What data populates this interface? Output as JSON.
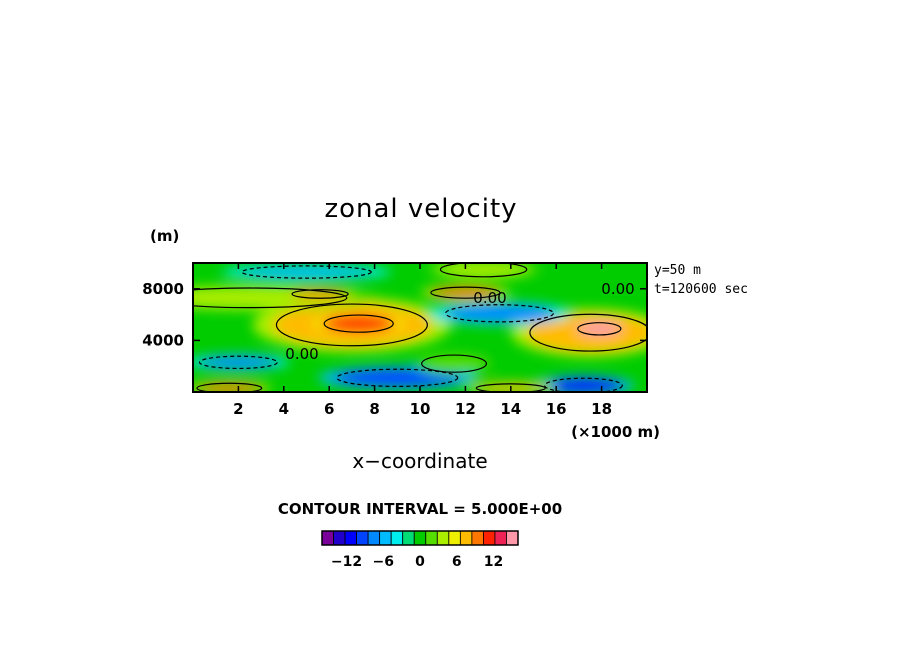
{
  "chart_data": {
    "type": "heatmap",
    "title": "zonal velocity",
    "xlabel": "x−coordinate",
    "x_unit": "(×1000 m)",
    "y_unit": "(m)",
    "xlim": [
      0,
      20
    ],
    "ylim": [
      0,
      10000
    ],
    "x_ticks": [
      2,
      4,
      6,
      8,
      10,
      12,
      14,
      16,
      18
    ],
    "y_ticks": [
      4000,
      8000
    ],
    "info_lines": [
      "y=50 m",
      "t=120600 sec"
    ],
    "contour_interval_text": "CONTOUR INTERVAL = 5.000E+00",
    "contour_labels": [
      "0.00",
      "0.00",
      "0.00"
    ],
    "colorbar": {
      "tick_labels": [
        "−12",
        "−6",
        "0",
        "6",
        "12"
      ],
      "tick_values": [
        -12,
        -6,
        0,
        6,
        12
      ],
      "levels": [
        -16,
        -14,
        -12,
        -10,
        -8,
        -6,
        -4,
        -2,
        0,
        2,
        4,
        6,
        8,
        10,
        12,
        14,
        16
      ],
      "colors": [
        "#7a0099",
        "#2200cc",
        "#0000ff",
        "#0044ff",
        "#0088ff",
        "#00bbff",
        "#00eeee",
        "#00dd77",
        "#00cc00",
        "#55dd00",
        "#aaee00",
        "#eeee00",
        "#ffbb00",
        "#ff7700",
        "#ff2200",
        "#ee2255",
        "#ff99aa"
      ]
    },
    "features": [
      {
        "x": 7.0,
        "y": 5200,
        "rx": 3.5,
        "ry": 1700,
        "value": 9
      },
      {
        "x": 7.3,
        "y": 5300,
        "rx": 1.6,
        "ry": 700,
        "value": 13
      },
      {
        "x": 17.5,
        "y": 4600,
        "rx": 2.8,
        "ry": 1500,
        "value": 10
      },
      {
        "x": 17.9,
        "y": 4900,
        "rx": 1.0,
        "ry": 500,
        "value": 18
      },
      {
        "x": 2.5,
        "y": 7300,
        "rx": 4.5,
        "ry": 800,
        "value": 6
      },
      {
        "x": 5.6,
        "y": 7600,
        "rx": 1.3,
        "ry": 350,
        "value": 12
      },
      {
        "x": 12.0,
        "y": 7700,
        "rx": 1.6,
        "ry": 450,
        "value": 12
      },
      {
        "x": 13.5,
        "y": 6100,
        "rx": 2.5,
        "ry": 700,
        "value": -7
      },
      {
        "x": 9.0,
        "y": 1100,
        "rx": 2.8,
        "ry": 700,
        "value": -9
      },
      {
        "x": 17.2,
        "y": 500,
        "rx": 1.8,
        "ry": 600,
        "value": -11
      },
      {
        "x": 2.0,
        "y": 2300,
        "rx": 1.8,
        "ry": 500,
        "value": -6
      },
      {
        "x": 1.6,
        "y": 300,
        "rx": 1.5,
        "ry": 400,
        "value": 11
      },
      {
        "x": 14.0,
        "y": 300,
        "rx": 1.6,
        "ry": 350,
        "value": 9
      },
      {
        "x": 12.8,
        "y": 9500,
        "rx": 2.0,
        "ry": 600,
        "value": 6
      },
      {
        "x": 5.0,
        "y": 9300,
        "rx": 3.0,
        "ry": 500,
        "value": -4
      },
      {
        "x": 11.5,
        "y": 2200,
        "rx": 1.5,
        "ry": 700,
        "value": 4
      }
    ]
  }
}
